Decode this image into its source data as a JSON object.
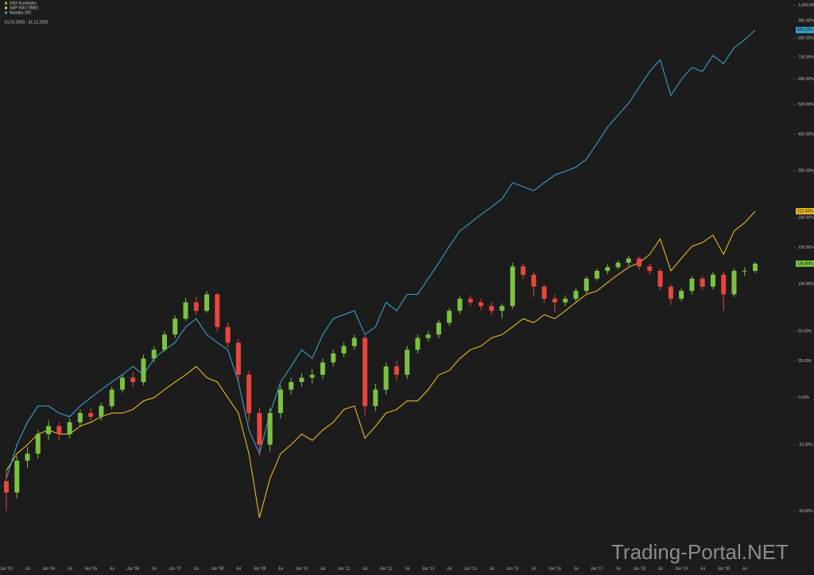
{
  "chart_data": {
    "type": "candlestick",
    "subtitle": "01.01.2003 - 31.12.2020",
    "watermark": "Trading-Portal.NET",
    "log_scale": true,
    "ylim": [
      -62,
      1036
    ],
    "yticks": [
      {
        "value": -50,
        "label": "-50.00%"
      },
      {
        "value": -25,
        "label": "-25.00%"
      },
      {
        "value": 0,
        "label": "0.00%"
      },
      {
        "value": 25,
        "label": "25.00%"
      },
      {
        "value": 50,
        "label": "50.00%"
      },
      {
        "value": 100,
        "label": "100.00%"
      },
      {
        "value": 150,
        "label": "150.00%"
      },
      {
        "value": 200,
        "label": "200.00%"
      },
      {
        "value": 300,
        "label": "300.00%"
      },
      {
        "value": 400,
        "label": "400.00%"
      },
      {
        "value": 500,
        "label": "500.00%"
      },
      {
        "value": 600,
        "label": "600.00%"
      },
      {
        "value": 700,
        "label": "700.00%"
      },
      {
        "value": 800,
        "label": "800.00%"
      },
      {
        "value": 900,
        "label": "900.00%"
      },
      {
        "value": 1000,
        "label": "1,000.00%"
      }
    ],
    "categories": [
      "Jan '03",
      null,
      "Jul",
      null,
      "Jan '04",
      null,
      "Jul",
      null,
      "Jan '05",
      null,
      "Jul",
      null,
      "Jan '06",
      null,
      "Jul",
      null,
      "Jan '07",
      null,
      "Jul",
      null,
      "Jan '08",
      null,
      "Jul",
      null,
      "Jan '09",
      null,
      "Jul",
      null,
      "Jan '10",
      null,
      "Jul",
      null,
      "Jan '11",
      null,
      "Jul",
      null,
      "Jan '12",
      null,
      "Jul",
      null,
      "Jan '13",
      null,
      "Jul",
      null,
      "Jan '14",
      null,
      "Jul",
      null,
      "Jan '15",
      null,
      "Jul",
      null,
      "Jan '16",
      null,
      "Jul",
      null,
      "Jan '17",
      null,
      "Jul",
      null,
      "Jan '18",
      null,
      "Jul",
      null,
      "Jan '19",
      null,
      "Jul",
      null,
      "Jan '20",
      null,
      "Jul",
      null
    ],
    "candles": {
      "name": "DAX Kursindex",
      "up_color": "#7cc242",
      "down_color": "#e8463e",
      "open": [
        -40,
        -44,
        -32,
        -29,
        -20,
        -16,
        -20,
        -14,
        -9,
        -11,
        -5,
        5,
        13,
        10,
        27,
        34,
        47,
        62,
        79,
        70,
        88,
        54,
        40,
        15,
        -9,
        -25,
        -9,
        5,
        10,
        13,
        15,
        24,
        31,
        37,
        44,
        -5,
        5,
        21,
        15,
        34,
        44,
        47,
        58,
        70,
        83,
        79,
        75,
        70,
        75,
        123,
        112,
        97,
        83,
        79,
        83,
        92,
        107,
        117,
        122,
        128,
        134,
        123,
        117,
        97,
        83,
        92,
        107,
        97,
        112,
        88,
        117,
        117
      ],
      "high": [
        -36,
        -30,
        -26,
        -18,
        -13,
        -14,
        -12,
        -7,
        -6,
        -3,
        7,
        15,
        17,
        30,
        37,
        50,
        65,
        84,
        85,
        92,
        90,
        58,
        43,
        18,
        -6,
        -6,
        8,
        13,
        16,
        19,
        27,
        34,
        40,
        47,
        46,
        9,
        24,
        25,
        37,
        47,
        50,
        61,
        73,
        86,
        87,
        83,
        79,
        78,
        128,
        127,
        115,
        100,
        88,
        87,
        95,
        110,
        120,
        126,
        131,
        138,
        137,
        127,
        120,
        100,
        95,
        110,
        110,
        115,
        116,
        120,
        122,
        129
      ],
      "low": [
        -50,
        -46,
        -35,
        -31,
        -23,
        -23,
        -22,
        -16,
        -13,
        -13,
        -7,
        3,
        7,
        8,
        24,
        32,
        44,
        60,
        66,
        68,
        50,
        36,
        10,
        -14,
        -30,
        -28,
        -12,
        2,
        7,
        9,
        12,
        21,
        28,
        34,
        -10,
        -8,
        2,
        11,
        12,
        31,
        41,
        44,
        55,
        67,
        75,
        71,
        66,
        62,
        72,
        107,
        85,
        79,
        68,
        75,
        80,
        89,
        104,
        113,
        119,
        124,
        118,
        112,
        93,
        76,
        80,
        88,
        93,
        94,
        70,
        85,
        110,
        114
      ],
      "close": [
        -44,
        -32,
        -29,
        -20,
        -16,
        -20,
        -14,
        -9,
        -11,
        -5,
        5,
        13,
        10,
        27,
        34,
        47,
        62,
        79,
        70,
        88,
        54,
        40,
        15,
        -9,
        -25,
        -9,
        5,
        10,
        13,
        15,
        24,
        31,
        37,
        44,
        -5,
        5,
        21,
        15,
        34,
        44,
        47,
        58,
        70,
        83,
        79,
        75,
        70,
        75,
        123,
        112,
        97,
        83,
        79,
        83,
        92,
        107,
        117,
        122,
        128,
        134,
        123,
        117,
        97,
        83,
        92,
        107,
        97,
        112,
        88,
        117,
        117,
        126.8
      ],
      "value_labels": [
        null,
        null,
        null,
        null,
        null,
        null,
        null,
        null,
        null,
        null,
        null,
        null,
        null,
        null,
        null,
        null,
        null,
        null,
        null,
        null,
        null,
        null,
        null,
        null,
        null,
        null,
        null,
        null,
        null,
        null,
        null,
        null,
        null,
        null,
        null,
        null,
        null,
        null,
        null,
        null,
        null,
        null,
        null,
        null,
        null,
        null,
        null,
        null,
        null,
        null,
        null,
        null,
        null,
        null,
        null,
        null,
        null,
        null,
        null,
        null,
        null,
        null,
        null,
        null,
        null,
        null,
        null,
        null,
        null,
        null,
        null,
        "126.80%"
      ]
    },
    "series": [
      {
        "name": "S&P 500 (TIME)",
        "type": "line",
        "color": "#e8b923",
        "values": [
          -36,
          -29,
          -25,
          -20,
          -18,
          -20,
          -20,
          -16,
          -14,
          -11,
          -9,
          -9,
          -7,
          -2,
          0,
          5,
          10,
          15,
          21,
          13,
          10,
          0,
          -9,
          -29,
          -52,
          -39,
          -29,
          -25,
          -20,
          -23,
          -18,
          -14,
          -7,
          -5,
          -22,
          -16,
          -9,
          -7,
          -2,
          -2,
          5,
          15,
          18,
          27,
          34,
          37,
          44,
          47,
          54,
          62,
          58,
          66,
          62,
          70,
          79,
          88,
          92,
          102,
          112,
          122,
          128,
          140,
          164,
          117,
          134,
          152,
          158,
          170,
          140,
          177,
          191,
          212.4
        ],
        "value_labels": [
          null,
          null,
          null,
          null,
          null,
          null,
          null,
          null,
          null,
          null,
          null,
          null,
          null,
          null,
          null,
          null,
          null,
          null,
          null,
          null,
          null,
          null,
          null,
          null,
          null,
          null,
          null,
          null,
          null,
          null,
          null,
          null,
          null,
          null,
          null,
          null,
          null,
          null,
          null,
          null,
          null,
          null,
          null,
          null,
          null,
          null,
          null,
          null,
          null,
          null,
          null,
          null,
          null,
          null,
          null,
          null,
          null,
          null,
          null,
          null,
          null,
          null,
          null,
          null,
          null,
          null,
          null,
          null,
          null,
          null,
          null,
          "212.40%"
        ]
      },
      {
        "name": "Nasdaq 100",
        "type": "line",
        "color": "#3a9fc9",
        "values": [
          -39,
          -25,
          -14,
          -5,
          -5,
          -9,
          -11,
          -5,
          0,
          5,
          10,
          15,
          21,
          15,
          27,
          34,
          40,
          54,
          62,
          47,
          40,
          34,
          10,
          -18,
          -29,
          -9,
          10,
          21,
          34,
          27,
          47,
          62,
          66,
          70,
          47,
          54,
          79,
          70,
          88,
          88,
          107,
          128,
          152,
          177,
          191,
          206,
          221,
          237,
          272,
          263,
          254,
          272,
          290,
          299,
          309,
          329,
          373,
          422,
          462,
          504,
          566,
          634,
          689,
          534,
          599,
          652,
          634,
          709,
          670,
          748,
          791,
          845.22
        ],
        "value_labels": [
          null,
          null,
          null,
          null,
          null,
          null,
          null,
          null,
          null,
          null,
          null,
          null,
          null,
          null,
          null,
          null,
          null,
          null,
          null,
          null,
          null,
          null,
          null,
          null,
          null,
          null,
          null,
          null,
          null,
          null,
          null,
          null,
          null,
          null,
          null,
          null,
          null,
          null,
          null,
          null,
          null,
          null,
          null,
          null,
          null,
          null,
          null,
          null,
          null,
          null,
          null,
          null,
          null,
          null,
          null,
          null,
          null,
          null,
          null,
          null,
          null,
          null,
          null,
          null,
          null,
          null,
          null,
          null,
          null,
          null,
          null,
          "845.22%"
        ]
      }
    ]
  }
}
